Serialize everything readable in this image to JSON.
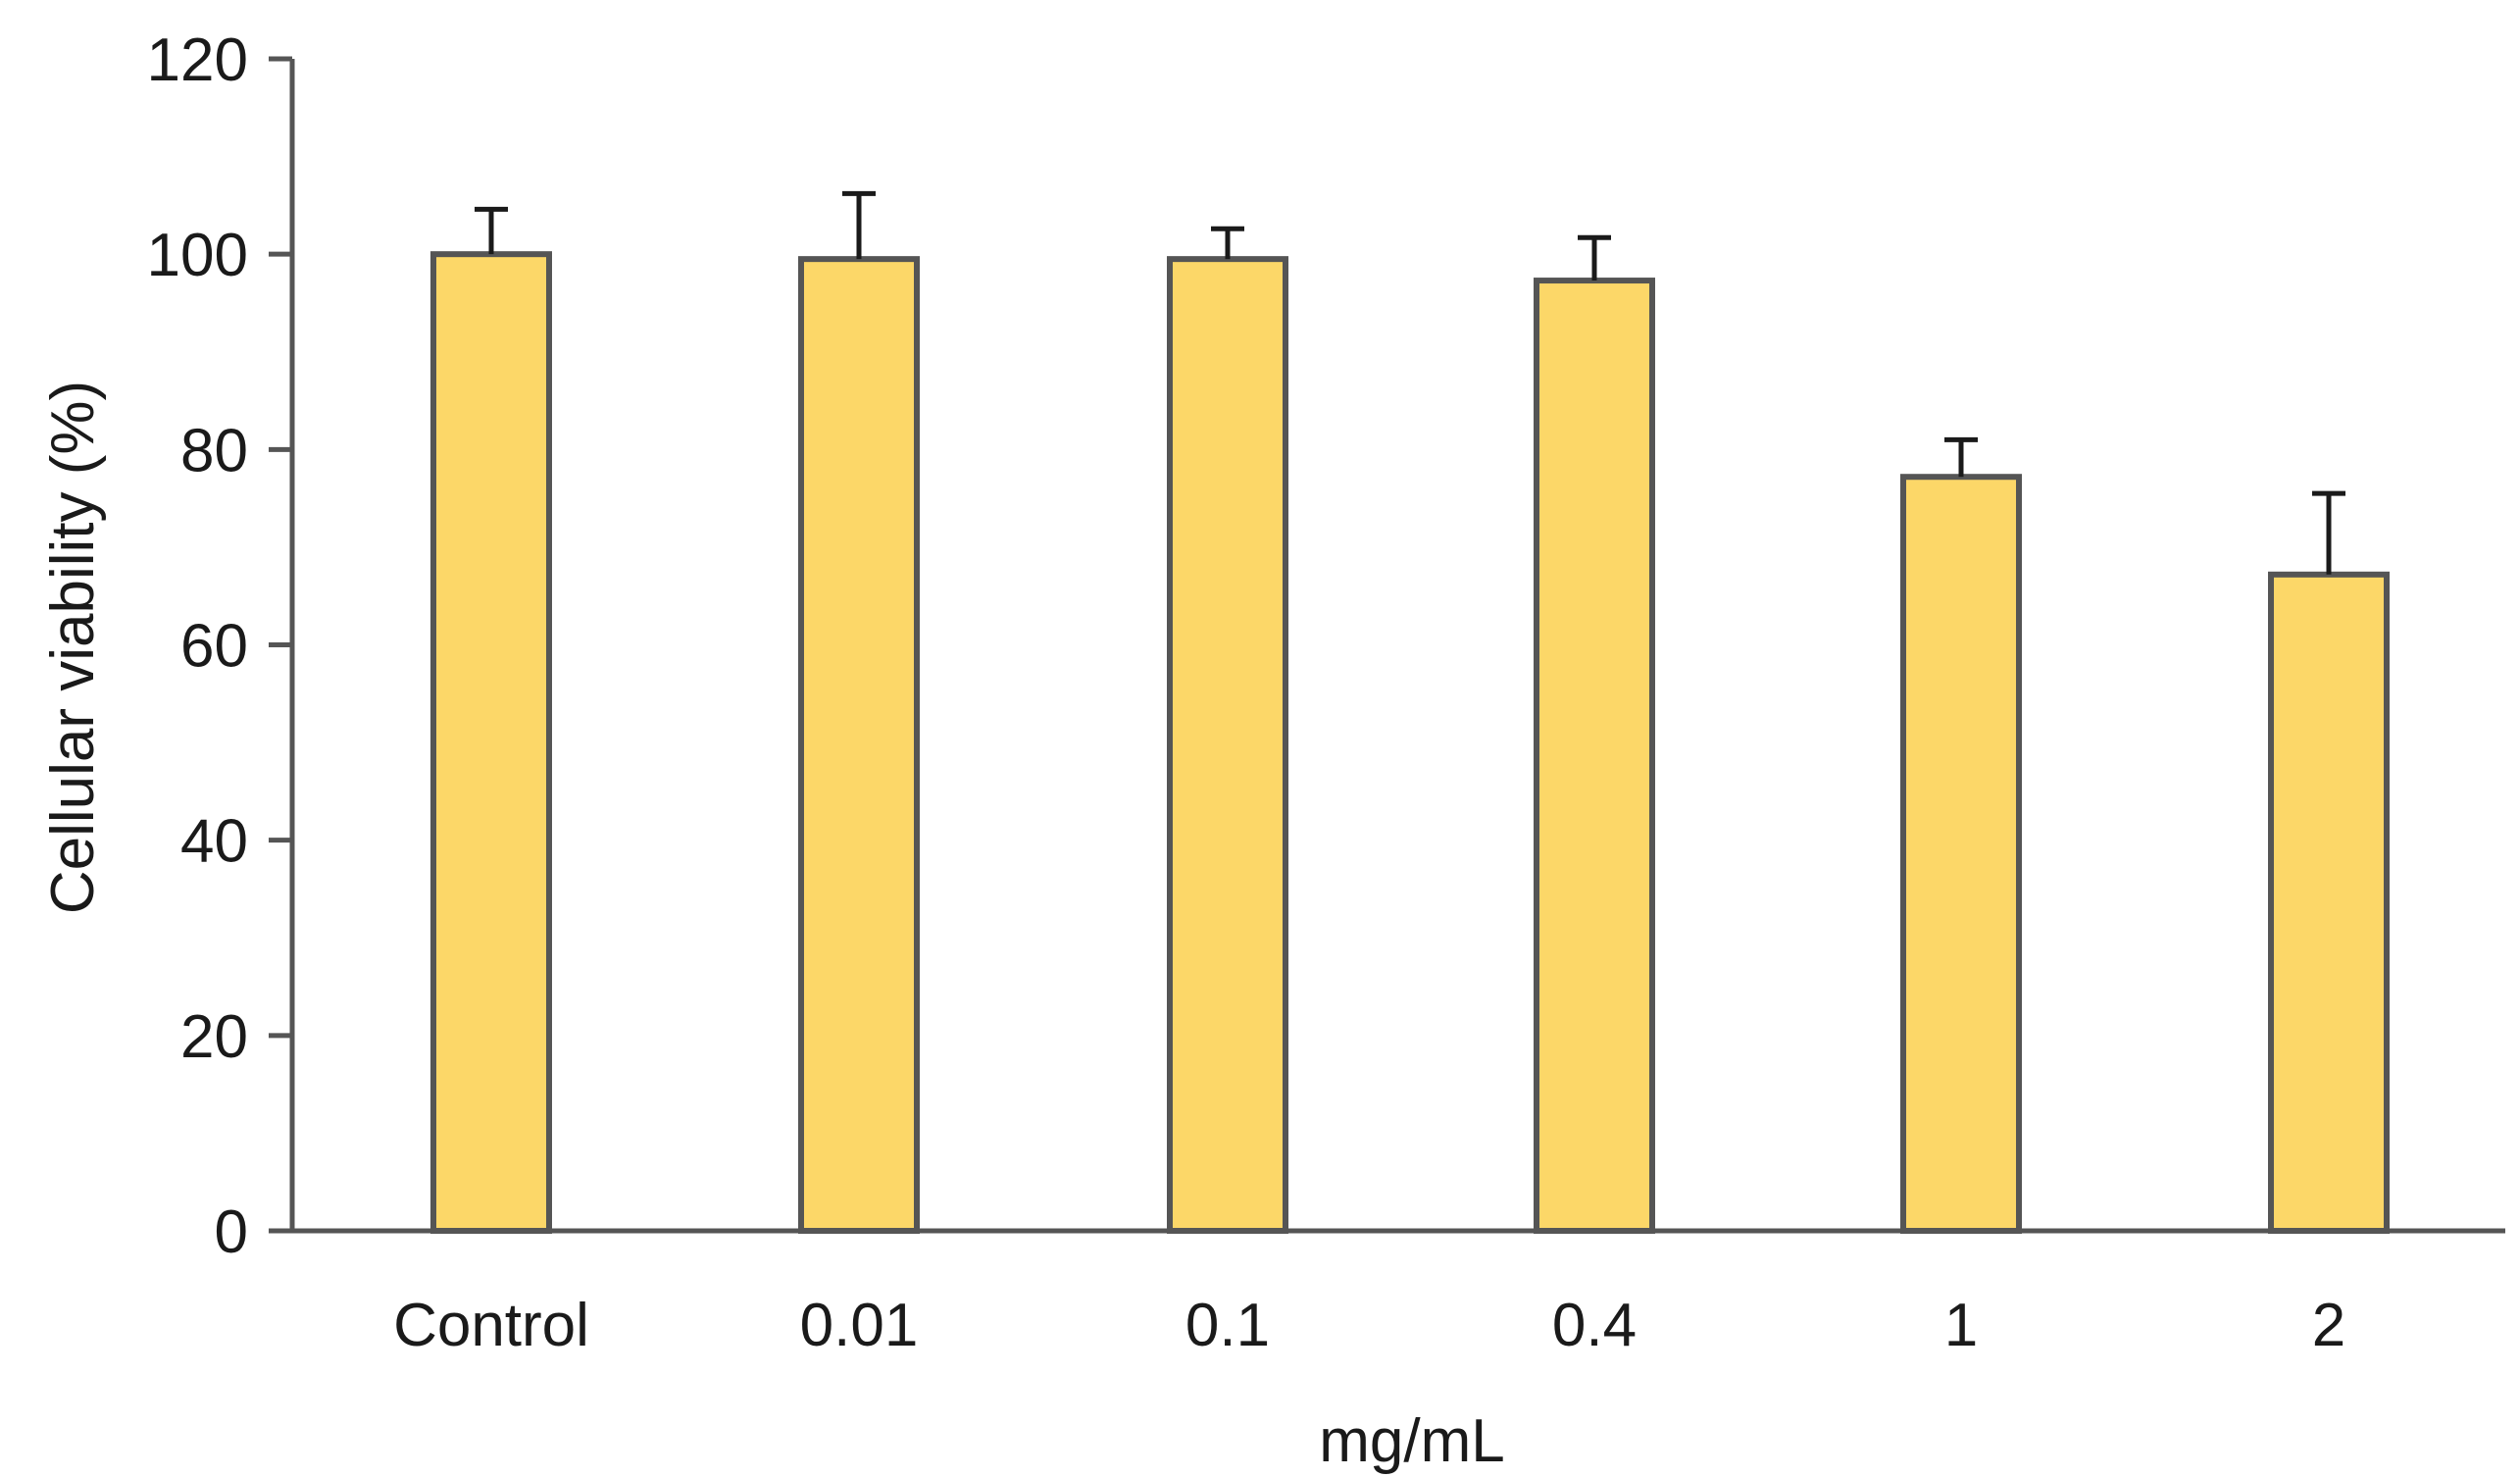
{
  "chart_data": {
    "type": "bar",
    "title": "",
    "xlabel": "mg/mL",
    "ylabel": "Cellular viability (%)",
    "categories": [
      "Control",
      "0.01",
      "0.1",
      "0.4",
      "1",
      "2"
    ],
    "series": [
      {
        "name": "Cellular viability",
        "values": [
          100,
          99.5,
          99.5,
          97.3,
          77.2,
          67.2
        ],
        "errors": [
          4.6,
          6.7,
          3.1,
          4.4,
          3.8,
          8.3
        ]
      }
    ],
    "ylim": [
      0,
      120
    ],
    "yticks": [
      0,
      20,
      40,
      60,
      80,
      100,
      120
    ],
    "grid": false,
    "legend": "none",
    "colors": {
      "bar_fill": "#fcd768",
      "bar_stroke": "#555555",
      "axis": "#555555",
      "error_bar": "#1a1a1a"
    }
  }
}
